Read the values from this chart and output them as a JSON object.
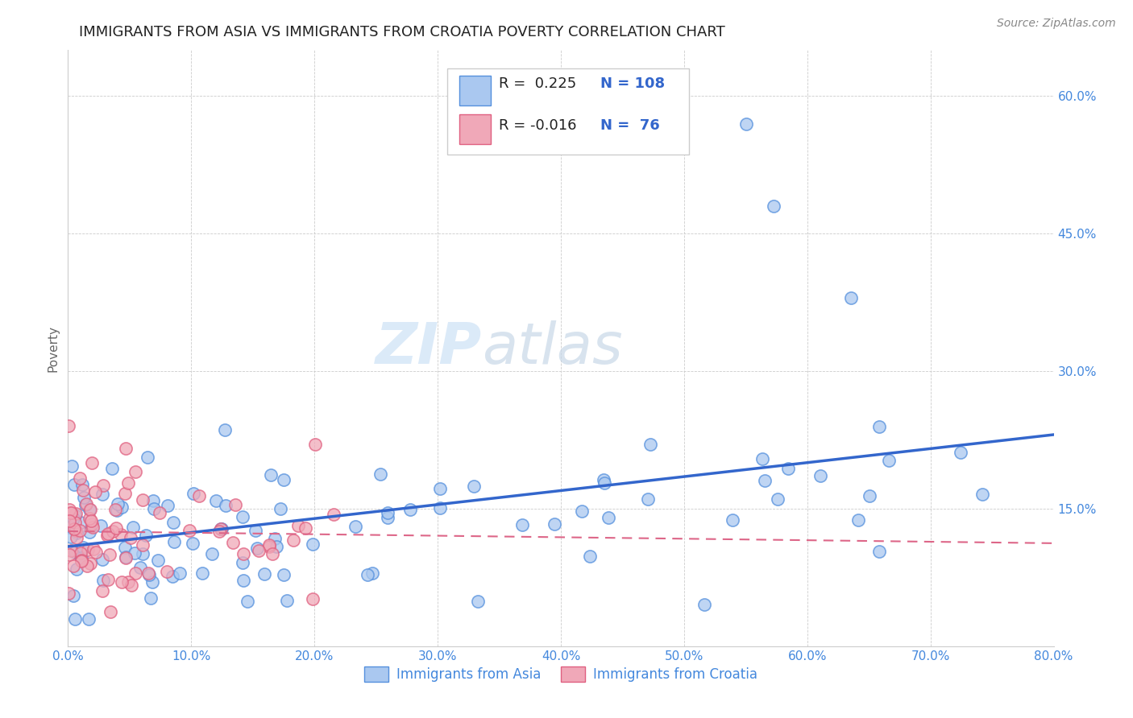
{
  "title": "IMMIGRANTS FROM ASIA VS IMMIGRANTS FROM CROATIA POVERTY CORRELATION CHART",
  "source_text": "Source: ZipAtlas.com",
  "ylabel": "Poverty",
  "xlim": [
    0.0,
    0.8
  ],
  "ylim": [
    0.0,
    0.65
  ],
  "xtick_values": [
    0.0,
    0.1,
    0.2,
    0.3,
    0.4,
    0.5,
    0.6,
    0.7,
    0.8
  ],
  "ytick_values": [
    0.15,
    0.3,
    0.45,
    0.6
  ],
  "R_asia": 0.225,
  "N_asia": 108,
  "R_croatia": -0.016,
  "N_croatia": 76,
  "asia_color": "#aac8f0",
  "croatia_color": "#f0a8b8",
  "asia_edge_color": "#5590dd",
  "croatia_edge_color": "#e06080",
  "asia_line_color": "#3366cc",
  "croatia_line_color": "#dd6688",
  "watermark_zip": "ZIP",
  "watermark_atlas": "atlas",
  "legend_labels": [
    "Immigrants from Asia",
    "Immigrants from Croatia"
  ],
  "background_color": "#ffffff",
  "grid_color": "#cccccc",
  "ytick_color": "#4488dd",
  "xtick_color": "#4488dd",
  "title_fontsize": 13,
  "axis_label_fontsize": 11,
  "source_fontsize": 10,
  "dot_size": 120,
  "dot_linewidth": 1.2
}
